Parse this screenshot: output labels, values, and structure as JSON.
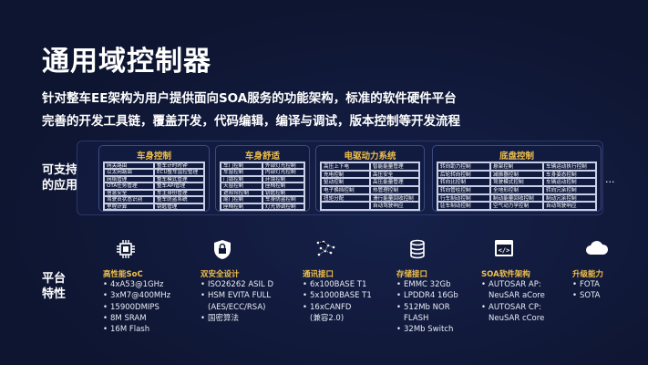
{
  "title": "通用域控制器",
  "subtitle_lines": [
    "针对整车EE架构为用户提供面向SOA服务的功能架构，标准的软件硬件平台",
    "完善的开发工具链，覆盖开发，代码编辑，编译与调试，版本控制等开发流程"
  ],
  "apps": {
    "label_lines": [
      "可支持",
      "的应用"
    ],
    "more": "...",
    "groups": [
      {
        "title": "车身控制",
        "cols": 2,
        "cells": [
          "网关路由",
          "整车计时时钟",
          "以太网路由",
          "ECU整车监控管理",
          "网络管理",
          "整车模式管理",
          "OTA任务管理",
          "整车API管理",
          "信息安全",
          "车主身份管理",
          "驾驶员状态识别",
          "整车防盗系统",
          "里程计算",
          "钥匙管理"
        ]
      },
      {
        "title": "车身舒适",
        "cols": 2,
        "cells": [
          "车门控制",
          "外部灯光控制",
          "车窗控制",
          "内部灯光控制",
          "门锁控制",
          "环境控制",
          "天窗控制",
          "座椅控制",
          "遮阳帘控制",
          "钥匙控制",
          "尾门控制",
          "车身防盗控制",
          "座椅控制",
          "灯光协调控制"
        ]
      },
      {
        "title": "电驱动力系统",
        "cols": 2,
        "cells": [
          "高压上下电",
          "智能能量管理",
          "充电控制",
          "高压安全",
          "驱动控制",
          "高压能量管理",
          "电子换挡控制",
          "热管理控制",
          "扭矩分配",
          "滑行能量回收控制",
          "",
          "自动驾驶响应"
        ]
      },
      {
        "title": "底盘控制",
        "cols": 3,
        "cells": [
          "转向助力控制",
          "悬架控制",
          "车辆运动执行控制",
          "后轮转向控制",
          "减振器控制",
          "车身姿态控制",
          "转向比控制",
          "驾驶模式控制",
          "车辆运动控制",
          "转向管柱控制",
          "全地形控制",
          "转向冗余控制",
          "行车制动控制",
          "制动能量回收控制",
          "制动冗余控制",
          "驻车制动控制",
          "空气动力学控制",
          "自动驾驶响应"
        ]
      }
    ]
  },
  "platform": {
    "label_lines": [
      "平台",
      "特性"
    ],
    "features": [
      {
        "icon": "chip-icon",
        "title": "高性能SoC",
        "items": [
          "4xA53@1GHz",
          "3xM7@400MHz",
          "15900DMIPS",
          "8M SRAM",
          "16M Flash"
        ]
      },
      {
        "icon": "shield-lock-icon",
        "title": "双安全设计",
        "items": [
          "ISO26262 ASIL D",
          "HSM EVITA FULL",
          "(AES/ECC/RSA)",
          "国密算法"
        ],
        "nobullet": [
          2
        ]
      },
      {
        "icon": "network-icon",
        "title": "通讯接口",
        "items": [
          "6x100BASE T1",
          "5x1000BASE T1",
          "16xCANFD",
          "(兼容2.0)"
        ],
        "nobullet": [
          3
        ]
      },
      {
        "icon": "database-icon",
        "title": "存储接口",
        "items": [
          "EMMC 32Gb",
          "LPDDR4 16Gb",
          "512Mb NOR",
          "FLASH",
          "32Mb Switch"
        ],
        "nobullet": [
          3
        ]
      },
      {
        "icon": "code-icon",
        "title": "SOA软件架构",
        "items": [
          "AUTOSAR AP:",
          "NeuSAR aCore",
          "AUTOSAR CP:",
          "NeuSAR cCore"
        ],
        "nobullet": [
          1,
          3
        ]
      },
      {
        "icon": "cloud-icon",
        "title": "升级能力",
        "items": [
          "FOTA",
          "SOTA"
        ]
      }
    ]
  },
  "colors": {
    "background": "#0f1734",
    "accent": "#f2c14a"
  }
}
